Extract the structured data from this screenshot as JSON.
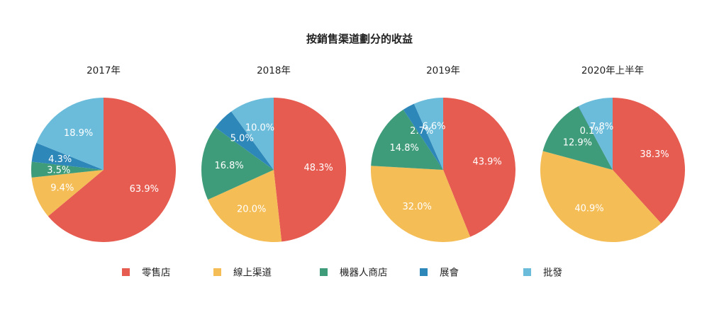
{
  "chart_data": {
    "type": "pie",
    "title": "按銷售渠道劃分的收益",
    "legend_position": "bottom",
    "categories": [
      "零售店",
      "線上渠道",
      "機器人商店",
      "展會",
      "批發"
    ],
    "colors": [
      "#e65c51",
      "#f4bd56",
      "#3f9c7b",
      "#2d87b9",
      "#6bbcdb"
    ],
    "pies": [
      {
        "title": "2017年",
        "values": [
          63.9,
          9.4,
          3.5,
          4.3,
          18.9
        ],
        "labels": [
          "63.9%",
          "9.4%",
          "3.5%",
          "4.3%",
          "18.9%"
        ]
      },
      {
        "title": "2018年",
        "values": [
          48.3,
          20.0,
          16.8,
          5.0,
          10.0
        ],
        "labels": [
          "48.3%",
          "20.0%",
          "16.8%",
          "5.0%",
          "10.0%"
        ]
      },
      {
        "title": "2019年",
        "values": [
          43.9,
          32.0,
          14.8,
          2.7,
          6.6
        ],
        "labels": [
          "43.9%",
          "32.0%",
          "14.8%",
          "2.7%",
          "6.6%"
        ]
      },
      {
        "title": "2020年上半年",
        "values": [
          38.3,
          40.9,
          12.9,
          0.1,
          7.8
        ],
        "labels": [
          "38.3%",
          "40.9%",
          "12.9%",
          "0.1%",
          "7.8%"
        ]
      }
    ]
  }
}
